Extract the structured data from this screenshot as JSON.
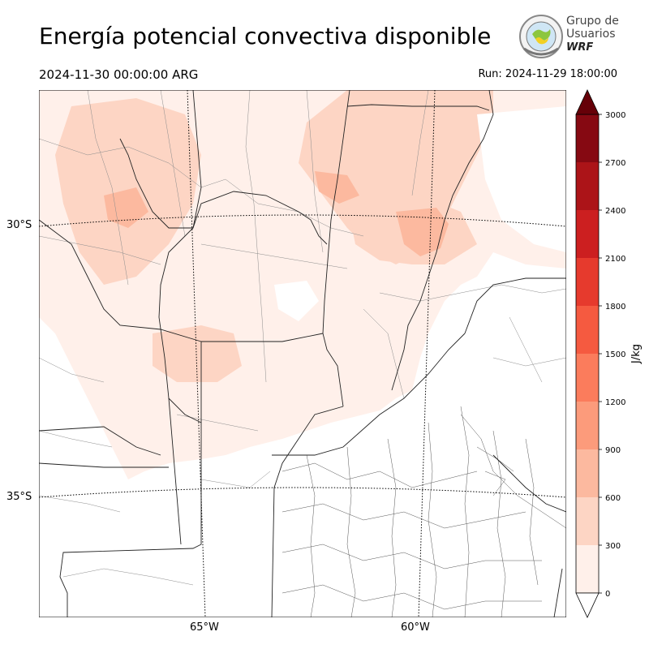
{
  "title": "Energía potencial convectiva disponible",
  "valid_time": "2024-11-30 00:00:00 ARG",
  "run_time": "Run: 2024-11-29 18:00:00",
  "logo": {
    "line1": "Grupo de",
    "line2": "Usuarios",
    "line3": "WRF"
  },
  "map": {
    "latitude_labels": [
      "30°S",
      "35°S"
    ],
    "longitude_labels": [
      "65°W",
      "60°W"
    ],
    "variable": "CAPE"
  },
  "colorbar": {
    "label": "J/kg",
    "levels": [
      0,
      300,
      600,
      900,
      1200,
      1500,
      1800,
      2100,
      2400,
      2700,
      3000
    ],
    "tick_labels": [
      "0",
      "300",
      "600",
      "900",
      "1200",
      "1500",
      "1800",
      "2100",
      "2400",
      "2700",
      "3000"
    ],
    "colors": [
      "#fff0ea",
      "#fdd5c4",
      "#fcb99f",
      "#fc9b7b",
      "#fb7c5c",
      "#f55a40",
      "#e63a2d",
      "#cc1f20",
      "#ac1418",
      "#860912"
    ],
    "extend": "both"
  }
}
